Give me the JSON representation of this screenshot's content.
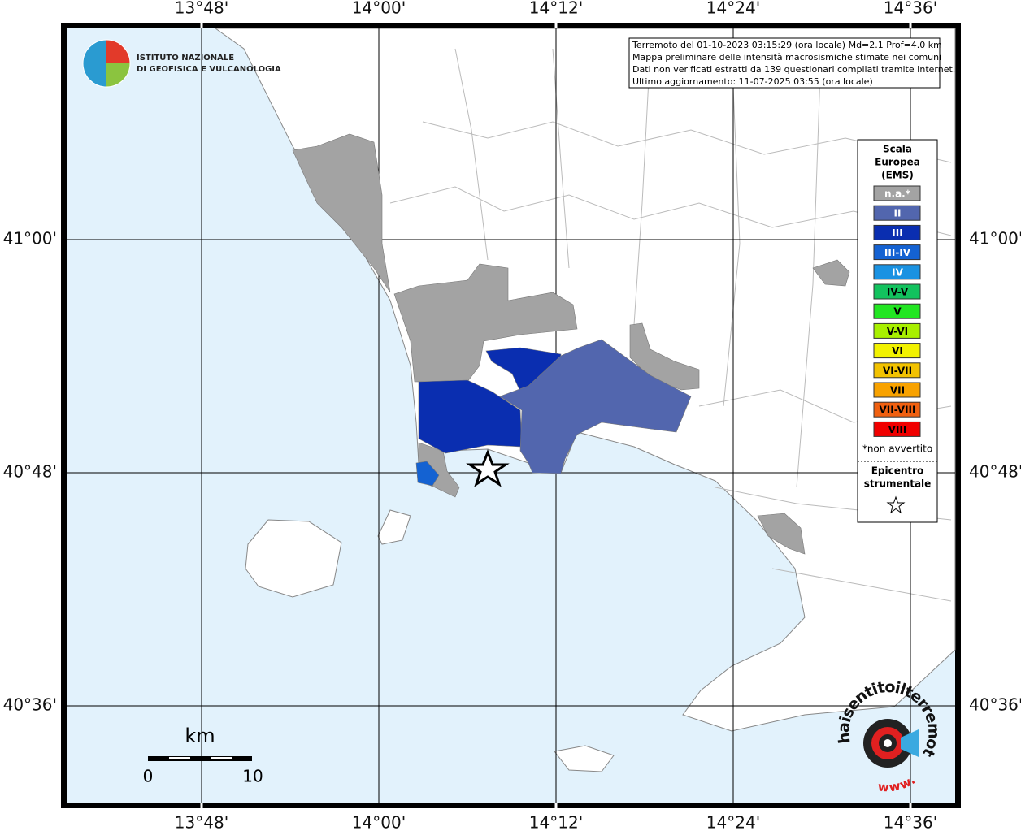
{
  "logo": {
    "line1": "ISTITUTO NAZIONALE",
    "line2": "DI GEOFISICA E VULCANOLOGIA"
  },
  "info": [
    "Terremoto del 01-10-2023 03:15:29 (ora locale) Md=2.1 Prof=4.0 km",
    "Mappa preliminare delle intensità macrosismiche stimate nei comuni",
    "Dati non verificati estratti da 139 questionari compilati tramite Internet.",
    "Ultimo aggiornamento: 11-07-2025 03:55 (ora locale)"
  ],
  "longitudes": [
    "13°48'",
    "14°00'",
    "14°12'",
    "14°24'",
    "14°36'"
  ],
  "latitudes": [
    "41°00'",
    "40°48'",
    "40°36'"
  ],
  "legend": {
    "title": [
      "Scala",
      "Europea",
      "(EMS)"
    ],
    "items": [
      {
        "label": "n.a.*",
        "color": "#a3a3a3"
      },
      {
        "label": "II",
        "color": "#5266ae"
      },
      {
        "label": "III",
        "color": "#0a2eb0"
      },
      {
        "label": "III-IV",
        "color": "#1462d2"
      },
      {
        "label": "IV",
        "color": "#1a92e2"
      },
      {
        "label": "IV-V",
        "color": "#12c25e"
      },
      {
        "label": "V",
        "color": "#22e622"
      },
      {
        "label": "V-VI",
        "color": "#a8f000"
      },
      {
        "label": "VI",
        "color": "#f2f200"
      },
      {
        "label": "VI-VII",
        "color": "#f2c200"
      },
      {
        "label": "VII",
        "color": "#f8a200"
      },
      {
        "label": "VII-VIII",
        "color": "#f06010"
      },
      {
        "label": "VIII",
        "color": "#f00000"
      }
    ],
    "note": "*non avvertito",
    "epicenter": [
      "Epicentro",
      "strumentale"
    ]
  },
  "scale": {
    "unit": "km",
    "labels": [
      "0",
      "10"
    ]
  },
  "badge": {
    "site": "haisentitoilterremoto.it",
    "prefix": "www."
  }
}
